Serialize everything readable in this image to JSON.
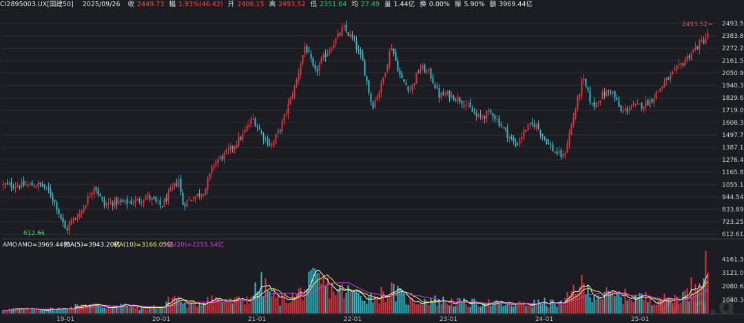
{
  "header": {
    "code": "CI2895003.UX[国建50]",
    "date": "2025/09/26",
    "close_label": "收",
    "close_value": "2449.73",
    "change_label": "幅",
    "change_value": "1.93%(46.42)",
    "open_label": "开",
    "open_value": "2406.15",
    "high_label": "高",
    "high_value": "2493.52",
    "low_label": "低",
    "low_value": "2351.64",
    "avg_label": "均",
    "avg_value": "27.49",
    "volume_label": "量",
    "volume_value": "1.44亿",
    "turnover_label": "换",
    "turnover_value": "0.00%",
    "amplitude_label": "振",
    "amplitude_value": "5.90%",
    "amount_label": "额",
    "amount_value": "3969.44亿"
  },
  "colors": {
    "background": "#1b1d22",
    "up": "#e0353f",
    "down": "#2cc0cc",
    "ma5": "#ffffff",
    "ma10": "#f2f25c",
    "ma20": "#d93bd9",
    "grid": "#2c2f36"
  },
  "watermark": "Win.d",
  "chart_data": [
    {
      "type": "candlestick",
      "price_ticks": [
        "2493.52",
        "2383.88",
        "2272.24",
        "2161.59",
        "2050.95",
        "1940.31",
        "1829.67",
        "1719.03",
        "1608.39",
        "1497.74",
        "1387.1",
        "1276.46",
        "1165.82",
        "1055.18",
        "944.54",
        "833.89",
        "723.25",
        "612.61"
      ],
      "x_ticks": [
        "19-01",
        "20-01",
        "21-01",
        "22-01",
        "23-01",
        "24-01",
        "25-01"
      ],
      "ylim": [
        612.61,
        2493.52
      ],
      "max_label": "2493.52",
      "min_label": "612.61",
      "trend_points": [
        [
          2018.75,
          1050
        ],
        [
          2018.83,
          990
        ],
        [
          2018.9,
          870
        ],
        [
          2019.0,
          640
        ],
        [
          2019.05,
          720
        ],
        [
          2019.15,
          800
        ],
        [
          2019.3,
          1050
        ],
        [
          2019.4,
          870
        ],
        [
          2019.5,
          900
        ],
        [
          2019.6,
          890
        ],
        [
          2019.75,
          910
        ],
        [
          2019.85,
          950
        ],
        [
          2020.0,
          860
        ],
        [
          2020.1,
          1000
        ],
        [
          2020.18,
          1100
        ],
        [
          2020.22,
          880
        ],
        [
          2020.35,
          950
        ],
        [
          2020.45,
          1000
        ],
        [
          2020.55,
          1250
        ],
        [
          2020.7,
          1350
        ],
        [
          2020.85,
          1500
        ],
        [
          2020.95,
          1650
        ],
        [
          2021.05,
          1500
        ],
        [
          2021.15,
          1400
        ],
        [
          2021.25,
          1580
        ],
        [
          2021.4,
          1950
        ],
        [
          2021.5,
          2300
        ],
        [
          2021.6,
          2050
        ],
        [
          2021.7,
          2200
        ],
        [
          2021.9,
          2450
        ],
        [
          2022.0,
          2350
        ],
        [
          2022.1,
          2150
        ],
        [
          2022.2,
          1750
        ],
        [
          2022.3,
          1950
        ],
        [
          2022.4,
          2300
        ],
        [
          2022.5,
          2000
        ],
        [
          2022.6,
          1900
        ],
        [
          2022.7,
          2100
        ],
        [
          2022.8,
          2050
        ],
        [
          2022.9,
          1850
        ],
        [
          2023.0,
          1860
        ],
        [
          2023.15,
          1800
        ],
        [
          2023.3,
          1650
        ],
        [
          2023.45,
          1700
        ],
        [
          2023.6,
          1520
        ],
        [
          2023.7,
          1400
        ],
        [
          2023.8,
          1550
        ],
        [
          2023.9,
          1600
        ],
        [
          2024.0,
          1470
        ],
        [
          2024.1,
          1350
        ],
        [
          2024.2,
          1300
        ],
        [
          2024.3,
          1650
        ],
        [
          2024.4,
          2000
        ],
        [
          2024.5,
          1750
        ],
        [
          2024.6,
          1850
        ],
        [
          2024.7,
          1900
        ],
        [
          2024.8,
          1700
        ],
        [
          2024.9,
          1750
        ],
        [
          2025.0,
          1760
        ],
        [
          2025.1,
          1800
        ],
        [
          2025.25,
          1960
        ],
        [
          2025.4,
          2100
        ],
        [
          2025.55,
          2250
        ],
        [
          2025.7,
          2380
        ],
        [
          2025.74,
          2449.73
        ]
      ]
    },
    {
      "type": "bar",
      "title": "AMO",
      "series": [
        {
          "name": "AMO=3969.44亿"
        },
        {
          "name": "MA(5)=3943.20亿"
        },
        {
          "name": "MA(10)=3166.05亿"
        },
        {
          "name": "MA(20)=2255.54亿"
        }
      ],
      "y_ticks": [
        "4161.3...",
        "3121.0...",
        "2080.6...",
        "1040.3..."
      ],
      "ylim": [
        0,
        4500
      ],
      "trend_points": [
        [
          2018.75,
          300
        ],
        [
          2019.0,
          350
        ],
        [
          2019.2,
          700
        ],
        [
          2019.4,
          500
        ],
        [
          2019.6,
          600
        ],
        [
          2019.8,
          400
        ],
        [
          2020.0,
          500
        ],
        [
          2020.15,
          1300
        ],
        [
          2020.25,
          600
        ],
        [
          2020.4,
          800
        ],
        [
          2020.5,
          1200
        ],
        [
          2020.7,
          800
        ],
        [
          2020.9,
          1100
        ],
        [
          2021.05,
          2200
        ],
        [
          2021.2,
          1000
        ],
        [
          2021.4,
          1300
        ],
        [
          2021.6,
          2500
        ],
        [
          2021.8,
          1800
        ],
        [
          2022.0,
          1500
        ],
        [
          2022.2,
          1200
        ],
        [
          2022.4,
          1700
        ],
        [
          2022.6,
          900
        ],
        [
          2022.8,
          1000
        ],
        [
          2023.0,
          900
        ],
        [
          2023.2,
          750
        ],
        [
          2023.4,
          800
        ],
        [
          2023.6,
          650
        ],
        [
          2023.8,
          700
        ],
        [
          2024.0,
          800
        ],
        [
          2024.2,
          700
        ],
        [
          2024.35,
          2300
        ],
        [
          2024.45,
          1600
        ],
        [
          2024.6,
          1400
        ],
        [
          2024.8,
          1300
        ],
        [
          2025.0,
          1200
        ],
        [
          2025.3,
          1000
        ],
        [
          2025.5,
          1500
        ],
        [
          2025.65,
          3500
        ],
        [
          2025.74,
          3969
        ]
      ]
    }
  ]
}
